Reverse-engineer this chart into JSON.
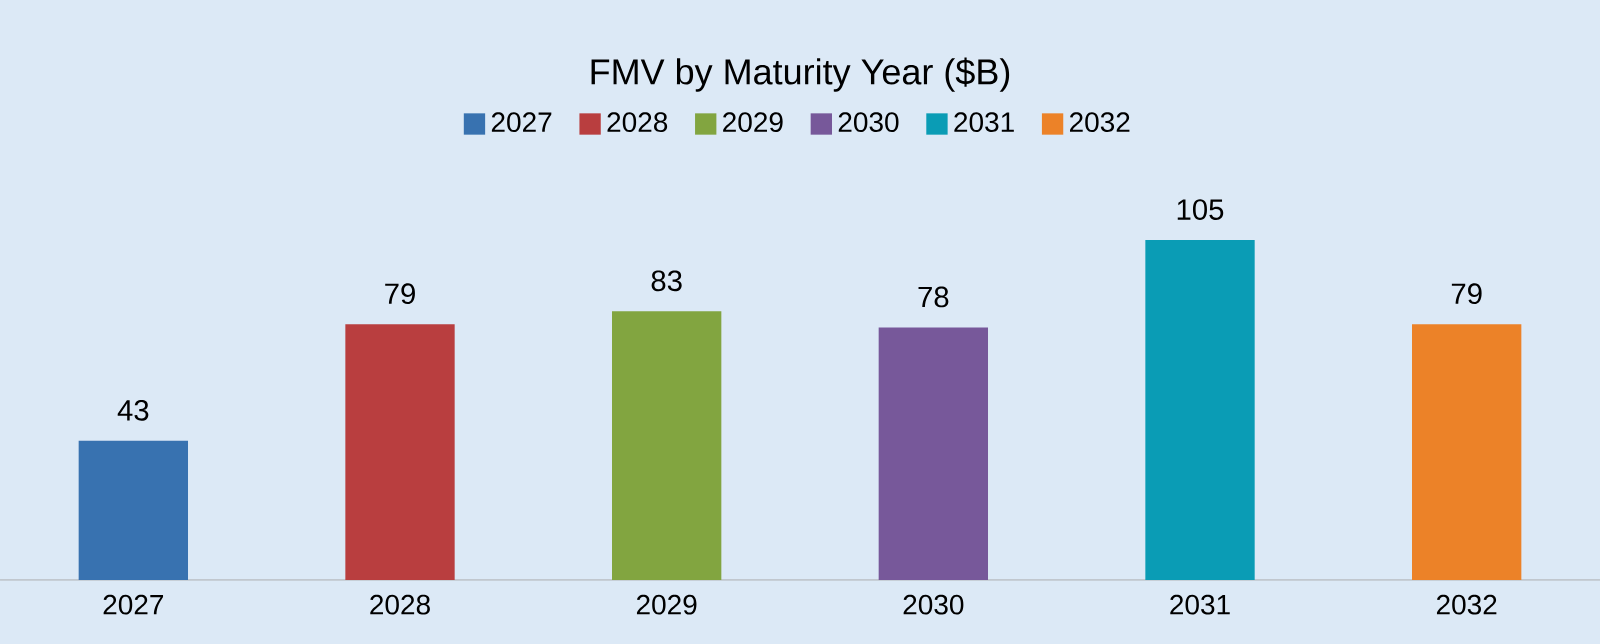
{
  "chart_data": {
    "type": "bar",
    "title": "FMV by Maturity Year ($B)",
    "categories": [
      "2027",
      "2028",
      "2029",
      "2030",
      "2031",
      "2032"
    ],
    "series": [
      {
        "name": "2027",
        "color": "#3872b0",
        "values": [
          43,
          null,
          null,
          null,
          null,
          null
        ]
      },
      {
        "name": "2028",
        "color": "#b93e3f",
        "values": [
          null,
          79,
          null,
          null,
          null,
          null
        ]
      },
      {
        "name": "2029",
        "color": "#82a540",
        "values": [
          null,
          null,
          83,
          null,
          null,
          null
        ]
      },
      {
        "name": "2030",
        "color": "#77589a",
        "values": [
          null,
          null,
          null,
          78,
          null,
          null
        ]
      },
      {
        "name": "2031",
        "color": "#0a9cb5",
        "values": [
          null,
          null,
          null,
          null,
          105,
          null
        ]
      },
      {
        "name": "2032",
        "color": "#ec8228",
        "values": [
          null,
          null,
          null,
          null,
          null,
          79
        ]
      }
    ],
    "ylim": [
      0,
      105
    ],
    "data_labels": true,
    "legend": "top"
  }
}
